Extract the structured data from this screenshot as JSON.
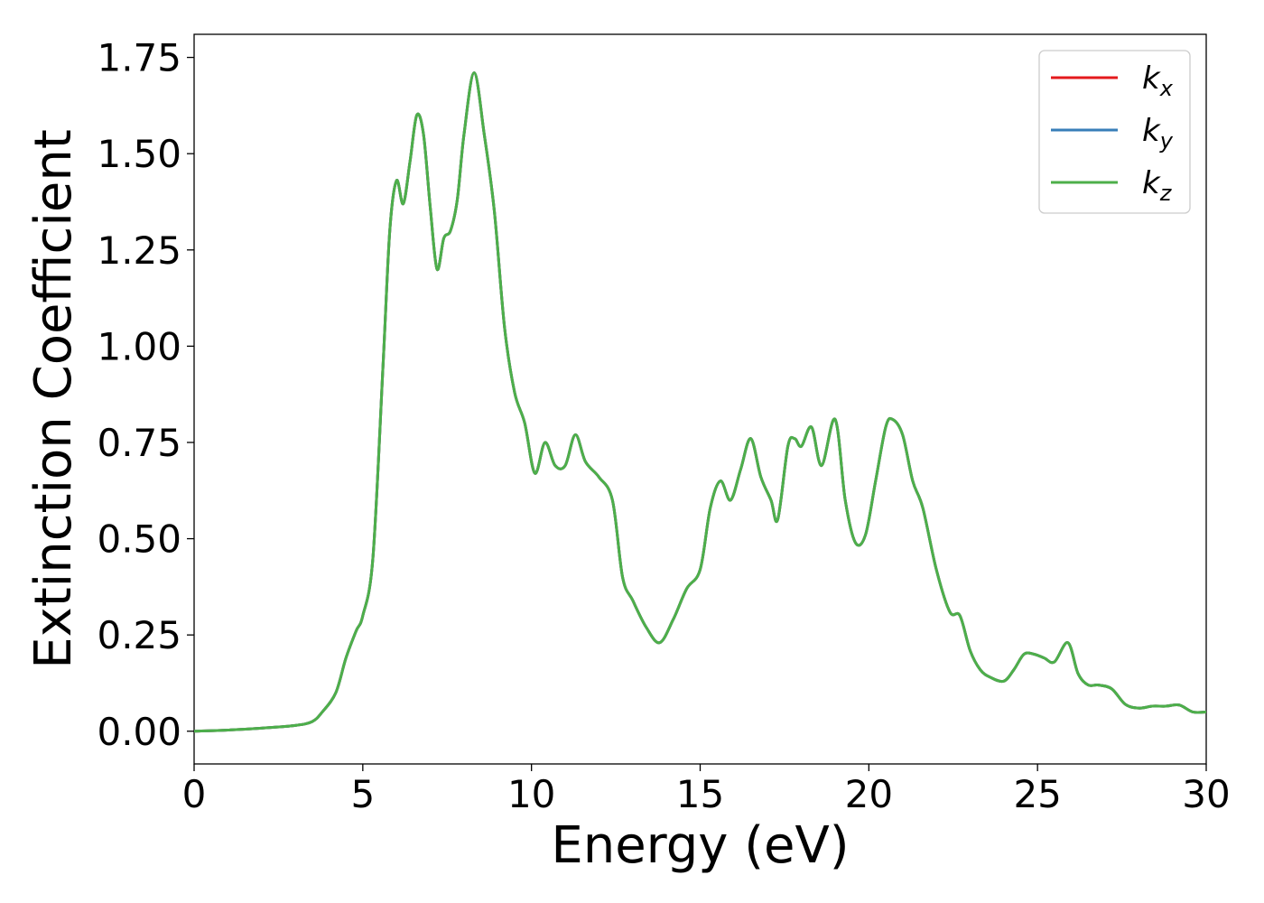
{
  "chart_data": {
    "type": "line",
    "xlabel": "Energy (eV)",
    "ylabel": "Extinction Coefficient",
    "xlim": [
      0,
      30
    ],
    "ylim": [
      -0.085,
      1.81
    ],
    "x_ticks": [
      0,
      5,
      10,
      15,
      20,
      25,
      30
    ],
    "x_tick_labels": [
      "0",
      "5",
      "10",
      "15",
      "20",
      "25",
      "30"
    ],
    "y_ticks": [
      0.0,
      0.25,
      0.5,
      0.75,
      1.0,
      1.25,
      1.5,
      1.75
    ],
    "y_tick_labels": [
      "0.00",
      "0.25",
      "0.50",
      "0.75",
      "1.00",
      "1.25",
      "1.50",
      "1.75"
    ],
    "grid": false,
    "legend_position": "top-right",
    "series": [
      {
        "name": "k_x",
        "base": "k",
        "sub": "x",
        "color": "#e41a1c",
        "x": [
          0,
          1,
          2,
          3,
          3.5,
          3.8,
          4.2,
          4.5,
          4.8,
          5.0,
          5.3,
          5.6,
          5.8,
          6.0,
          6.2,
          6.4,
          6.6,
          6.8,
          7.0,
          7.2,
          7.4,
          7.6,
          7.8,
          8.0,
          8.3,
          8.6,
          8.9,
          9.2,
          9.5,
          9.8,
          10.1,
          10.4,
          10.7,
          11.0,
          11.3,
          11.6,
          12.0,
          12.4,
          12.7,
          13.0,
          13.4,
          13.8,
          14.2,
          14.6,
          15.0,
          15.3,
          15.6,
          15.9,
          16.2,
          16.5,
          16.8,
          17.1,
          17.3,
          17.6,
          17.8,
          18.0,
          18.3,
          18.6,
          19.0,
          19.3,
          19.6,
          19.9,
          20.2,
          20.5,
          20.7,
          21.0,
          21.3,
          21.6,
          22.0,
          22.4,
          22.7,
          23.0,
          23.3,
          23.6,
          24.0,
          24.3,
          24.6,
          24.9,
          25.2,
          25.5,
          25.9,
          26.2,
          26.5,
          26.8,
          27.2,
          27.6,
          28.0,
          28.4,
          28.8,
          29.2,
          29.6,
          30.0
        ],
        "y": [
          0.0,
          0.003,
          0.008,
          0.015,
          0.025,
          0.05,
          0.1,
          0.19,
          0.26,
          0.3,
          0.45,
          0.95,
          1.3,
          1.43,
          1.37,
          1.48,
          1.6,
          1.55,
          1.36,
          1.2,
          1.28,
          1.3,
          1.38,
          1.55,
          1.71,
          1.55,
          1.35,
          1.05,
          0.88,
          0.8,
          0.67,
          0.75,
          0.69,
          0.69,
          0.77,
          0.7,
          0.66,
          0.6,
          0.4,
          0.34,
          0.27,
          0.23,
          0.29,
          0.37,
          0.42,
          0.58,
          0.65,
          0.6,
          0.68,
          0.76,
          0.66,
          0.6,
          0.55,
          0.74,
          0.76,
          0.74,
          0.79,
          0.69,
          0.81,
          0.6,
          0.49,
          0.51,
          0.65,
          0.79,
          0.81,
          0.77,
          0.65,
          0.58,
          0.42,
          0.31,
          0.3,
          0.21,
          0.16,
          0.14,
          0.13,
          0.16,
          0.2,
          0.2,
          0.19,
          0.18,
          0.23,
          0.15,
          0.12,
          0.12,
          0.11,
          0.07,
          0.06,
          0.065,
          0.065,
          0.068,
          0.05,
          0.05
        ]
      },
      {
        "name": "k_y",
        "base": "k",
        "sub": "y",
        "color": "#377eb8",
        "x": [
          0,
          1,
          2,
          3,
          3.5,
          3.8,
          4.2,
          4.5,
          4.8,
          5.0,
          5.3,
          5.6,
          5.8,
          6.0,
          6.2,
          6.4,
          6.6,
          6.8,
          7.0,
          7.2,
          7.4,
          7.6,
          7.8,
          8.0,
          8.3,
          8.6,
          8.9,
          9.2,
          9.5,
          9.8,
          10.1,
          10.4,
          10.7,
          11.0,
          11.3,
          11.6,
          12.0,
          12.4,
          12.7,
          13.0,
          13.4,
          13.8,
          14.2,
          14.6,
          15.0,
          15.3,
          15.6,
          15.9,
          16.2,
          16.5,
          16.8,
          17.1,
          17.3,
          17.6,
          17.8,
          18.0,
          18.3,
          18.6,
          19.0,
          19.3,
          19.6,
          19.9,
          20.2,
          20.5,
          20.7,
          21.0,
          21.3,
          21.6,
          22.0,
          22.4,
          22.7,
          23.0,
          23.3,
          23.6,
          24.0,
          24.3,
          24.6,
          24.9,
          25.2,
          25.5,
          25.9,
          26.2,
          26.5,
          26.8,
          27.2,
          27.6,
          28.0,
          28.4,
          28.8,
          29.2,
          29.6,
          30.0
        ],
        "y": [
          0.0,
          0.003,
          0.008,
          0.015,
          0.025,
          0.05,
          0.1,
          0.19,
          0.26,
          0.3,
          0.45,
          0.95,
          1.3,
          1.43,
          1.37,
          1.48,
          1.6,
          1.55,
          1.36,
          1.2,
          1.28,
          1.3,
          1.38,
          1.55,
          1.71,
          1.55,
          1.35,
          1.05,
          0.88,
          0.8,
          0.67,
          0.75,
          0.69,
          0.69,
          0.77,
          0.7,
          0.66,
          0.6,
          0.4,
          0.34,
          0.27,
          0.23,
          0.29,
          0.37,
          0.42,
          0.58,
          0.65,
          0.6,
          0.68,
          0.76,
          0.66,
          0.6,
          0.55,
          0.74,
          0.76,
          0.74,
          0.79,
          0.69,
          0.81,
          0.6,
          0.49,
          0.51,
          0.65,
          0.79,
          0.81,
          0.77,
          0.65,
          0.58,
          0.42,
          0.31,
          0.3,
          0.21,
          0.16,
          0.14,
          0.13,
          0.16,
          0.2,
          0.2,
          0.19,
          0.18,
          0.23,
          0.15,
          0.12,
          0.12,
          0.11,
          0.07,
          0.06,
          0.065,
          0.065,
          0.068,
          0.05,
          0.05
        ]
      },
      {
        "name": "k_z",
        "base": "k",
        "sub": "z",
        "color": "#4daf4a",
        "x": [
          0,
          1,
          2,
          3,
          3.5,
          3.8,
          4.2,
          4.5,
          4.8,
          5.0,
          5.3,
          5.6,
          5.8,
          6.0,
          6.2,
          6.4,
          6.6,
          6.8,
          7.0,
          7.2,
          7.4,
          7.6,
          7.8,
          8.0,
          8.3,
          8.6,
          8.9,
          9.2,
          9.5,
          9.8,
          10.1,
          10.4,
          10.7,
          11.0,
          11.3,
          11.6,
          12.0,
          12.4,
          12.7,
          13.0,
          13.4,
          13.8,
          14.2,
          14.6,
          15.0,
          15.3,
          15.6,
          15.9,
          16.2,
          16.5,
          16.8,
          17.1,
          17.3,
          17.6,
          17.8,
          18.0,
          18.3,
          18.6,
          19.0,
          19.3,
          19.6,
          19.9,
          20.2,
          20.5,
          20.7,
          21.0,
          21.3,
          21.6,
          22.0,
          22.4,
          22.7,
          23.0,
          23.3,
          23.6,
          24.0,
          24.3,
          24.6,
          24.9,
          25.2,
          25.5,
          25.9,
          26.2,
          26.5,
          26.8,
          27.2,
          27.6,
          28.0,
          28.4,
          28.8,
          29.2,
          29.6,
          30.0
        ],
        "y": [
          0.0,
          0.003,
          0.008,
          0.015,
          0.025,
          0.05,
          0.1,
          0.19,
          0.26,
          0.3,
          0.45,
          0.95,
          1.3,
          1.43,
          1.37,
          1.48,
          1.6,
          1.55,
          1.36,
          1.2,
          1.28,
          1.3,
          1.38,
          1.55,
          1.71,
          1.55,
          1.35,
          1.05,
          0.88,
          0.8,
          0.67,
          0.75,
          0.69,
          0.69,
          0.77,
          0.7,
          0.66,
          0.6,
          0.4,
          0.34,
          0.27,
          0.23,
          0.29,
          0.37,
          0.42,
          0.58,
          0.65,
          0.6,
          0.68,
          0.76,
          0.66,
          0.6,
          0.55,
          0.74,
          0.76,
          0.74,
          0.79,
          0.69,
          0.81,
          0.6,
          0.49,
          0.51,
          0.65,
          0.79,
          0.81,
          0.77,
          0.65,
          0.58,
          0.42,
          0.31,
          0.3,
          0.21,
          0.16,
          0.14,
          0.13,
          0.16,
          0.2,
          0.2,
          0.19,
          0.18,
          0.23,
          0.15,
          0.12,
          0.12,
          0.11,
          0.07,
          0.06,
          0.065,
          0.065,
          0.068,
          0.05,
          0.05
        ]
      }
    ]
  }
}
